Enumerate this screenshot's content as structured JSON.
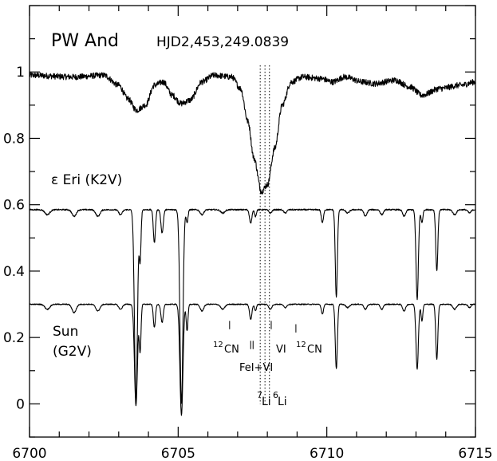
{
  "chart_data": {
    "type": "line",
    "xlim": [
      6700,
      6715
    ],
    "ylim": [
      -0.1,
      1.2
    ],
    "xticks": [
      6700,
      6705,
      6710,
      6715
    ],
    "yticks": [
      0,
      0.2,
      0.4,
      0.6,
      0.8,
      1
    ],
    "xtick_labels": [
      "6700",
      "6705",
      "6710",
      "6715"
    ],
    "ytick_labels": [
      "0",
      "0.2",
      "0.4",
      "0.6",
      "0.8",
      "1"
    ],
    "grid": false,
    "labels": {
      "target": "PW And",
      "hjd": "HJD2,453,249.0839",
      "eps_eri": "ε Eri (K2V)",
      "sun": "Sun",
      "sun_type": "(G2V)",
      "cn_left_sup": "12",
      "cn_left": "CN",
      "cn_right_sup": "12",
      "cn_right": "CN",
      "vi": "VI",
      "fe_vi": "FeI+VI",
      "li7_sup": "7",
      "li7": "Li",
      "li6_sup": "6",
      "li6": "Li"
    },
    "guide_lines_x": [
      6707.76,
      6707.92,
      6708.07
    ],
    "line_markers": [
      {
        "x": 6706.73,
        "y_top": 0.25,
        "y_bottom": 0.225
      },
      {
        "x": 6707.44,
        "y_top": 0.19,
        "y_bottom": 0.165
      },
      {
        "x": 6707.52,
        "y_top": 0.19,
        "y_bottom": 0.165
      },
      {
        "x": 6708.13,
        "y_top": 0.25,
        "y_bottom": 0.225
      },
      {
        "x": 6708.96,
        "y_top": 0.24,
        "y_bottom": 0.215
      }
    ],
    "series": [
      {
        "baseline": 0.99,
        "noise": 0.009,
        "points": [
          [
            6700,
            0.99
          ],
          [
            6701.5,
            0.985
          ],
          [
            6702.5,
            0.99
          ],
          [
            6703,
            0.96
          ],
          [
            6703.3,
            0.92
          ],
          [
            6703.6,
            0.885
          ],
          [
            6703.9,
            0.9
          ],
          [
            6704.2,
            0.96
          ],
          [
            6704.5,
            0.97
          ],
          [
            6704.8,
            0.93
          ],
          [
            6705.1,
            0.905
          ],
          [
            6705.4,
            0.915
          ],
          [
            6705.8,
            0.97
          ],
          [
            6706.2,
            0.99
          ],
          [
            6706.8,
            0.985
          ],
          [
            6707.1,
            0.95
          ],
          [
            6707.35,
            0.85
          ],
          [
            6707.55,
            0.74
          ],
          [
            6707.8,
            0.64
          ],
          [
            6708.0,
            0.66
          ],
          [
            6708.25,
            0.77
          ],
          [
            6708.5,
            0.9
          ],
          [
            6708.8,
            0.97
          ],
          [
            6709.2,
            0.985
          ],
          [
            6709.8,
            0.98
          ],
          [
            6710.2,
            0.97
          ],
          [
            6710.6,
            0.985
          ],
          [
            6711.2,
            0.97
          ],
          [
            6711.6,
            0.965
          ],
          [
            6712.3,
            0.975
          ],
          [
            6712.8,
            0.955
          ],
          [
            6713.2,
            0.93
          ],
          [
            6713.8,
            0.95
          ],
          [
            6714.5,
            0.96
          ],
          [
            6715,
            0.97
          ]
        ]
      },
      {
        "baseline": 0.585,
        "noise": 0.002,
        "lines": [
          [
            6700.6,
            0.015,
            0.08
          ],
          [
            6701.5,
            0.02,
            0.07
          ],
          [
            6702.3,
            0.02,
            0.07
          ],
          [
            6703.06,
            0.015,
            0.06
          ],
          [
            6703.58,
            0.58,
            0.05
          ],
          [
            6703.72,
            0.15,
            0.03
          ],
          [
            6704.2,
            0.1,
            0.035
          ],
          [
            6704.46,
            0.07,
            0.04
          ],
          [
            6705.11,
            0.585,
            0.05
          ],
          [
            6705.3,
            0.04,
            0.03
          ],
          [
            6705.8,
            0.015,
            0.06
          ],
          [
            6706.5,
            0.01,
            0.07
          ],
          [
            6707.44,
            0.04,
            0.04
          ],
          [
            6707.6,
            0.02,
            0.03
          ],
          [
            6708.1,
            0.01,
            0.05
          ],
          [
            6708.6,
            0.01,
            0.05
          ],
          [
            6709.85,
            0.04,
            0.035
          ],
          [
            6710.32,
            0.265,
            0.035
          ],
          [
            6710.7,
            0.01,
            0.06
          ],
          [
            6711.3,
            0.02,
            0.05
          ],
          [
            6711.85,
            0.015,
            0.05
          ],
          [
            6712.6,
            0.02,
            0.05
          ],
          [
            6713.04,
            0.27,
            0.04
          ],
          [
            6713.2,
            0.04,
            0.03
          ],
          [
            6713.7,
            0.185,
            0.035
          ],
          [
            6714.3,
            0.015,
            0.06
          ],
          [
            6714.8,
            0.01,
            0.05
          ]
        ]
      },
      {
        "baseline": 0.3,
        "noise": 0.0015,
        "lines": [
          [
            6700.6,
            0.015,
            0.08
          ],
          [
            6701.5,
            0.025,
            0.07
          ],
          [
            6702.3,
            0.02,
            0.07
          ],
          [
            6703.06,
            0.015,
            0.06
          ],
          [
            6703.58,
            0.305,
            0.05
          ],
          [
            6703.72,
            0.14,
            0.03
          ],
          [
            6704.2,
            0.07,
            0.035
          ],
          [
            6704.46,
            0.055,
            0.04
          ],
          [
            6705.11,
            0.335,
            0.05
          ],
          [
            6705.3,
            0.08,
            0.03
          ],
          [
            6705.8,
            0.02,
            0.06
          ],
          [
            6706.5,
            0.015,
            0.07
          ],
          [
            6707.44,
            0.045,
            0.04
          ],
          [
            6707.6,
            0.02,
            0.03
          ],
          [
            6708.1,
            0.015,
            0.05
          ],
          [
            6708.6,
            0.01,
            0.05
          ],
          [
            6709.85,
            0.03,
            0.035
          ],
          [
            6710.32,
            0.195,
            0.035
          ],
          [
            6710.7,
            0.01,
            0.06
          ],
          [
            6711.3,
            0.015,
            0.05
          ],
          [
            6711.85,
            0.015,
            0.05
          ],
          [
            6712.6,
            0.02,
            0.05
          ],
          [
            6713.04,
            0.195,
            0.04
          ],
          [
            6713.2,
            0.05,
            0.03
          ],
          [
            6713.7,
            0.165,
            0.035
          ],
          [
            6714.3,
            0.015,
            0.06
          ],
          [
            6714.8,
            0.01,
            0.05
          ]
        ]
      }
    ]
  }
}
